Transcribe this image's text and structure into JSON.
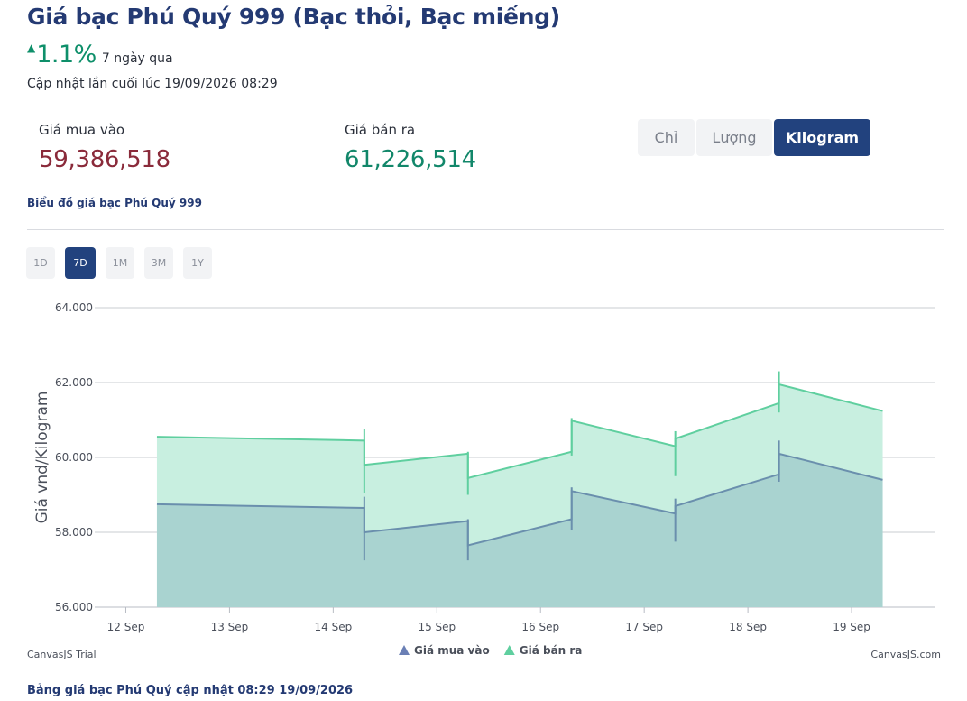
{
  "header": {
    "title": "Giá bạc Phú Quý 999 (Bạc thỏi, Bạc miếng)",
    "change_arrow": "▲",
    "change_pct": "1.1%",
    "change_period": "7 ngày qua",
    "updated": "Cập nhật lần cuối lúc 19/09/2026 08:29"
  },
  "prices": {
    "buy_label": "Giá mua vào",
    "buy_value": "59,386,518",
    "sell_label": "Giá bán ra",
    "sell_value": "61,226,514"
  },
  "unit_tabs": [
    {
      "label": "Chỉ",
      "active": false
    },
    {
      "label": "Lượng",
      "active": false
    },
    {
      "label": "Kilogram",
      "active": true
    }
  ],
  "chart_heading": "Biểu đồ giá bạc Phú Quý 999",
  "range_tabs": [
    {
      "label": "1D",
      "active": false
    },
    {
      "label": "7D",
      "active": true
    },
    {
      "label": "1M",
      "active": false
    },
    {
      "label": "3M",
      "active": false
    },
    {
      "label": "1Y",
      "active": false
    }
  ],
  "chart_data": {
    "type": "area",
    "ylabel": "Giá vnd/Kilogram",
    "ylim": [
      56000,
      64000
    ],
    "yticks": [
      56000,
      58000,
      60000,
      62000,
      64000
    ],
    "ytick_labels": [
      "56.000",
      "58.000",
      "60.000",
      "62.000",
      "64.000"
    ],
    "xlim": [
      -0.3,
      7.8
    ],
    "xticks": [
      0,
      1,
      2,
      3,
      4,
      5,
      6,
      7
    ],
    "xtick_labels": [
      "12 Sep",
      "13 Sep",
      "14 Sep",
      "15 Sep",
      "16 Sep",
      "17 Sep",
      "18 Sep",
      "19 Sep"
    ],
    "grid": true,
    "legend_position": "bottom-center",
    "series": [
      {
        "name": "Giá bán ra",
        "color": "#5fcf9f",
        "fill": "#c8efe0",
        "x": [
          0.3,
          2.3,
          2.3,
          3.3,
          3.3,
          4.3,
          4.3,
          5.3,
          5.3,
          6.3,
          6.3,
          7.3
        ],
        "values": [
          60550,
          60450,
          59800,
          60100,
          59450,
          60150,
          60980,
          60300,
          60500,
          61450,
          61950,
          61240
        ],
        "candles": [
          {
            "x": 2.3,
            "low": 59050,
            "high": 60750
          },
          {
            "x": 3.3,
            "low": 59000,
            "high": 60150
          },
          {
            "x": 4.3,
            "low": 60050,
            "high": 61050
          },
          {
            "x": 5.3,
            "low": 59500,
            "high": 60700
          },
          {
            "x": 6.3,
            "low": 61200,
            "high": 62300
          }
        ]
      },
      {
        "name": "Giá mua vào",
        "color": "#6a8fad",
        "fill": "#a9d3d0",
        "x": [
          0.3,
          2.3,
          2.3,
          3.3,
          3.3,
          4.3,
          4.3,
          5.3,
          5.3,
          6.3,
          6.3,
          7.3
        ],
        "values": [
          58750,
          58650,
          58000,
          58300,
          57650,
          58350,
          59100,
          58500,
          58700,
          59550,
          60100,
          59400
        ],
        "candles": [
          {
            "x": 2.3,
            "low": 57250,
            "high": 58950
          },
          {
            "x": 3.3,
            "low": 57250,
            "high": 58350
          },
          {
            "x": 4.3,
            "low": 58050,
            "high": 59200
          },
          {
            "x": 5.3,
            "low": 57750,
            "high": 58900
          },
          {
            "x": 6.3,
            "low": 59350,
            "high": 60450
          }
        ]
      }
    ],
    "legend": [
      {
        "label": "Giá mua vào",
        "color": "#6a7fb5"
      },
      {
        "label": "Giá bán ra",
        "color": "#5fcf9f"
      }
    ],
    "watermark_left": "CanvasJS Trial",
    "watermark_right": "CanvasJS.com"
  },
  "footer_title": "Bảng giá bạc Phú Quý cập nhật 08:29 19/09/2026"
}
